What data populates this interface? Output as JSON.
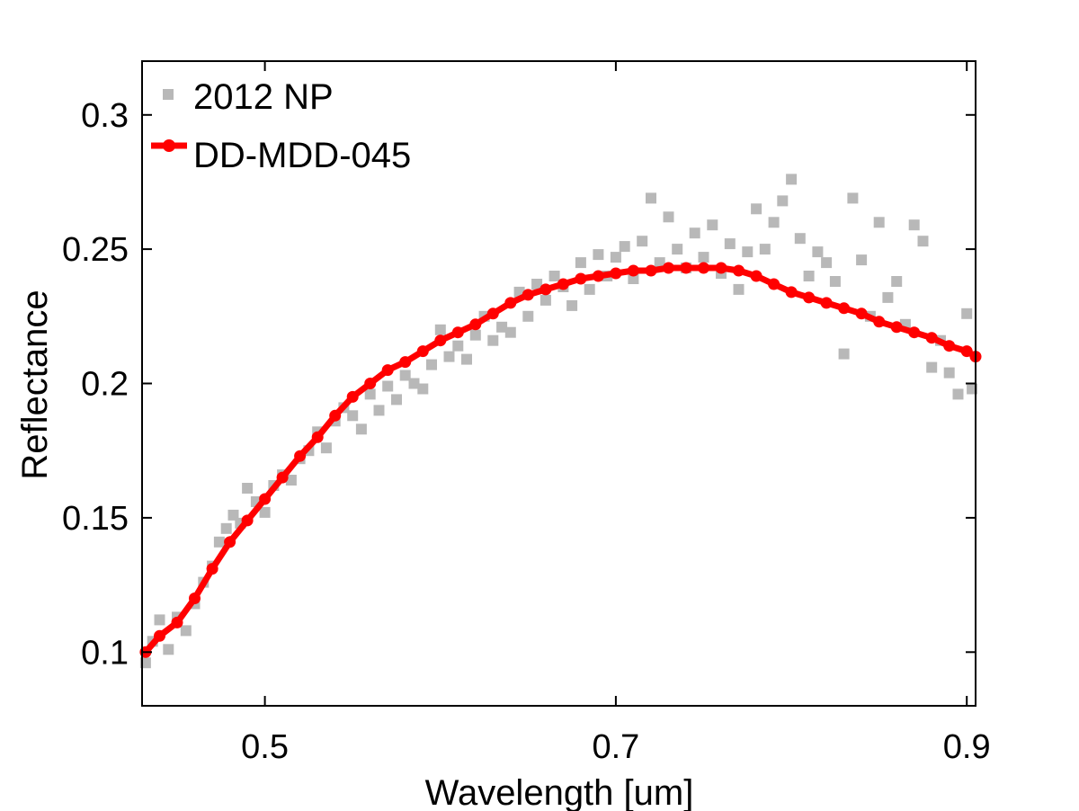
{
  "chart_data": {
    "type": "scatter",
    "title": "",
    "xlabel": "Wavelength [um]",
    "ylabel": "Reflectance",
    "xlim": [
      0.43,
      0.905
    ],
    "ylim": [
      0.08,
      0.32
    ],
    "xticks": [
      0.5,
      0.7,
      0.9
    ],
    "xtick_labels": [
      "0.5",
      "0.7",
      "0.9"
    ],
    "yticks": [
      0.1,
      0.15,
      0.2,
      0.25,
      0.3
    ],
    "ytick_labels": [
      "0.1",
      "0.15",
      "0.2",
      "0.25",
      "0.3"
    ],
    "grid": false,
    "legend_position": "top-left",
    "series": [
      {
        "name": "2012 NP",
        "kind": "scatter",
        "marker": "square",
        "color": "#b8b8b8",
        "points": [
          [
            0.432,
            0.096
          ],
          [
            0.436,
            0.104
          ],
          [
            0.44,
            0.112
          ],
          [
            0.445,
            0.101
          ],
          [
            0.45,
            0.113
          ],
          [
            0.455,
            0.108
          ],
          [
            0.46,
            0.118
          ],
          [
            0.465,
            0.126
          ],
          [
            0.47,
            0.132
          ],
          [
            0.474,
            0.141
          ],
          [
            0.478,
            0.146
          ],
          [
            0.482,
            0.151
          ],
          [
            0.486,
            0.148
          ],
          [
            0.49,
            0.161
          ],
          [
            0.495,
            0.156
          ],
          [
            0.5,
            0.152
          ],
          [
            0.505,
            0.162
          ],
          [
            0.51,
            0.166
          ],
          [
            0.515,
            0.164
          ],
          [
            0.52,
            0.172
          ],
          [
            0.525,
            0.175
          ],
          [
            0.53,
            0.182
          ],
          [
            0.535,
            0.176
          ],
          [
            0.54,
            0.186
          ],
          [
            0.545,
            0.191
          ],
          [
            0.55,
            0.188
          ],
          [
            0.555,
            0.183
          ],
          [
            0.56,
            0.196
          ],
          [
            0.565,
            0.19
          ],
          [
            0.57,
            0.199
          ],
          [
            0.575,
            0.194
          ],
          [
            0.58,
            0.203
          ],
          [
            0.585,
            0.2
          ],
          [
            0.59,
            0.198
          ],
          [
            0.595,
            0.207
          ],
          [
            0.6,
            0.22
          ],
          [
            0.605,
            0.21
          ],
          [
            0.61,
            0.214
          ],
          [
            0.615,
            0.209
          ],
          [
            0.62,
            0.218
          ],
          [
            0.625,
            0.225
          ],
          [
            0.63,
            0.216
          ],
          [
            0.635,
            0.221
          ],
          [
            0.64,
            0.219
          ],
          [
            0.645,
            0.234
          ],
          [
            0.65,
            0.225
          ],
          [
            0.655,
            0.237
          ],
          [
            0.66,
            0.231
          ],
          [
            0.665,
            0.24
          ],
          [
            0.67,
            0.236
          ],
          [
            0.675,
            0.229
          ],
          [
            0.68,
            0.245
          ],
          [
            0.685,
            0.235
          ],
          [
            0.69,
            0.248
          ],
          [
            0.695,
            0.24
          ],
          [
            0.7,
            0.247
          ],
          [
            0.705,
            0.251
          ],
          [
            0.71,
            0.239
          ],
          [
            0.715,
            0.253
          ],
          [
            0.72,
            0.269
          ],
          [
            0.725,
            0.245
          ],
          [
            0.73,
            0.262
          ],
          [
            0.735,
            0.25
          ],
          [
            0.74,
            0.243
          ],
          [
            0.745,
            0.256
          ],
          [
            0.75,
            0.247
          ],
          [
            0.755,
            0.259
          ],
          [
            0.76,
            0.241
          ],
          [
            0.765,
            0.252
          ],
          [
            0.77,
            0.235
          ],
          [
            0.775,
            0.249
          ],
          [
            0.78,
            0.265
          ],
          [
            0.785,
            0.25
          ],
          [
            0.79,
            0.26
          ],
          [
            0.795,
            0.268
          ],
          [
            0.8,
            0.276
          ],
          [
            0.805,
            0.254
          ],
          [
            0.81,
            0.24
          ],
          [
            0.815,
            0.249
          ],
          [
            0.82,
            0.245
          ],
          [
            0.825,
            0.238
          ],
          [
            0.83,
            0.211
          ],
          [
            0.835,
            0.269
          ],
          [
            0.84,
            0.246
          ],
          [
            0.845,
            0.225
          ],
          [
            0.85,
            0.26
          ],
          [
            0.855,
            0.232
          ],
          [
            0.86,
            0.238
          ],
          [
            0.865,
            0.222
          ],
          [
            0.87,
            0.259
          ],
          [
            0.875,
            0.253
          ],
          [
            0.88,
            0.206
          ],
          [
            0.885,
            0.216
          ],
          [
            0.89,
            0.204
          ],
          [
            0.895,
            0.196
          ],
          [
            0.9,
            0.226
          ],
          [
            0.903,
            0.198
          ]
        ]
      },
      {
        "name": "DD-MDD-045",
        "kind": "line",
        "marker": "circle",
        "color": "#ff0000",
        "x": [
          0.432,
          0.44,
          0.45,
          0.46,
          0.47,
          0.48,
          0.49,
          0.5,
          0.51,
          0.52,
          0.53,
          0.54,
          0.55,
          0.56,
          0.57,
          0.58,
          0.59,
          0.6,
          0.61,
          0.62,
          0.63,
          0.64,
          0.65,
          0.66,
          0.67,
          0.68,
          0.69,
          0.7,
          0.71,
          0.72,
          0.73,
          0.74,
          0.75,
          0.76,
          0.77,
          0.78,
          0.79,
          0.8,
          0.81,
          0.82,
          0.83,
          0.84,
          0.85,
          0.86,
          0.87,
          0.88,
          0.89,
          0.9,
          0.905
        ],
        "values": [
          0.1,
          0.106,
          0.111,
          0.12,
          0.131,
          0.141,
          0.149,
          0.157,
          0.165,
          0.173,
          0.18,
          0.188,
          0.195,
          0.2,
          0.205,
          0.208,
          0.212,
          0.216,
          0.219,
          0.222,
          0.226,
          0.23,
          0.233,
          0.235,
          0.237,
          0.239,
          0.24,
          0.241,
          0.242,
          0.242,
          0.243,
          0.243,
          0.243,
          0.243,
          0.242,
          0.24,
          0.237,
          0.234,
          0.232,
          0.23,
          0.228,
          0.226,
          0.223,
          0.221,
          0.219,
          0.217,
          0.214,
          0.212,
          0.21
        ]
      }
    ]
  }
}
